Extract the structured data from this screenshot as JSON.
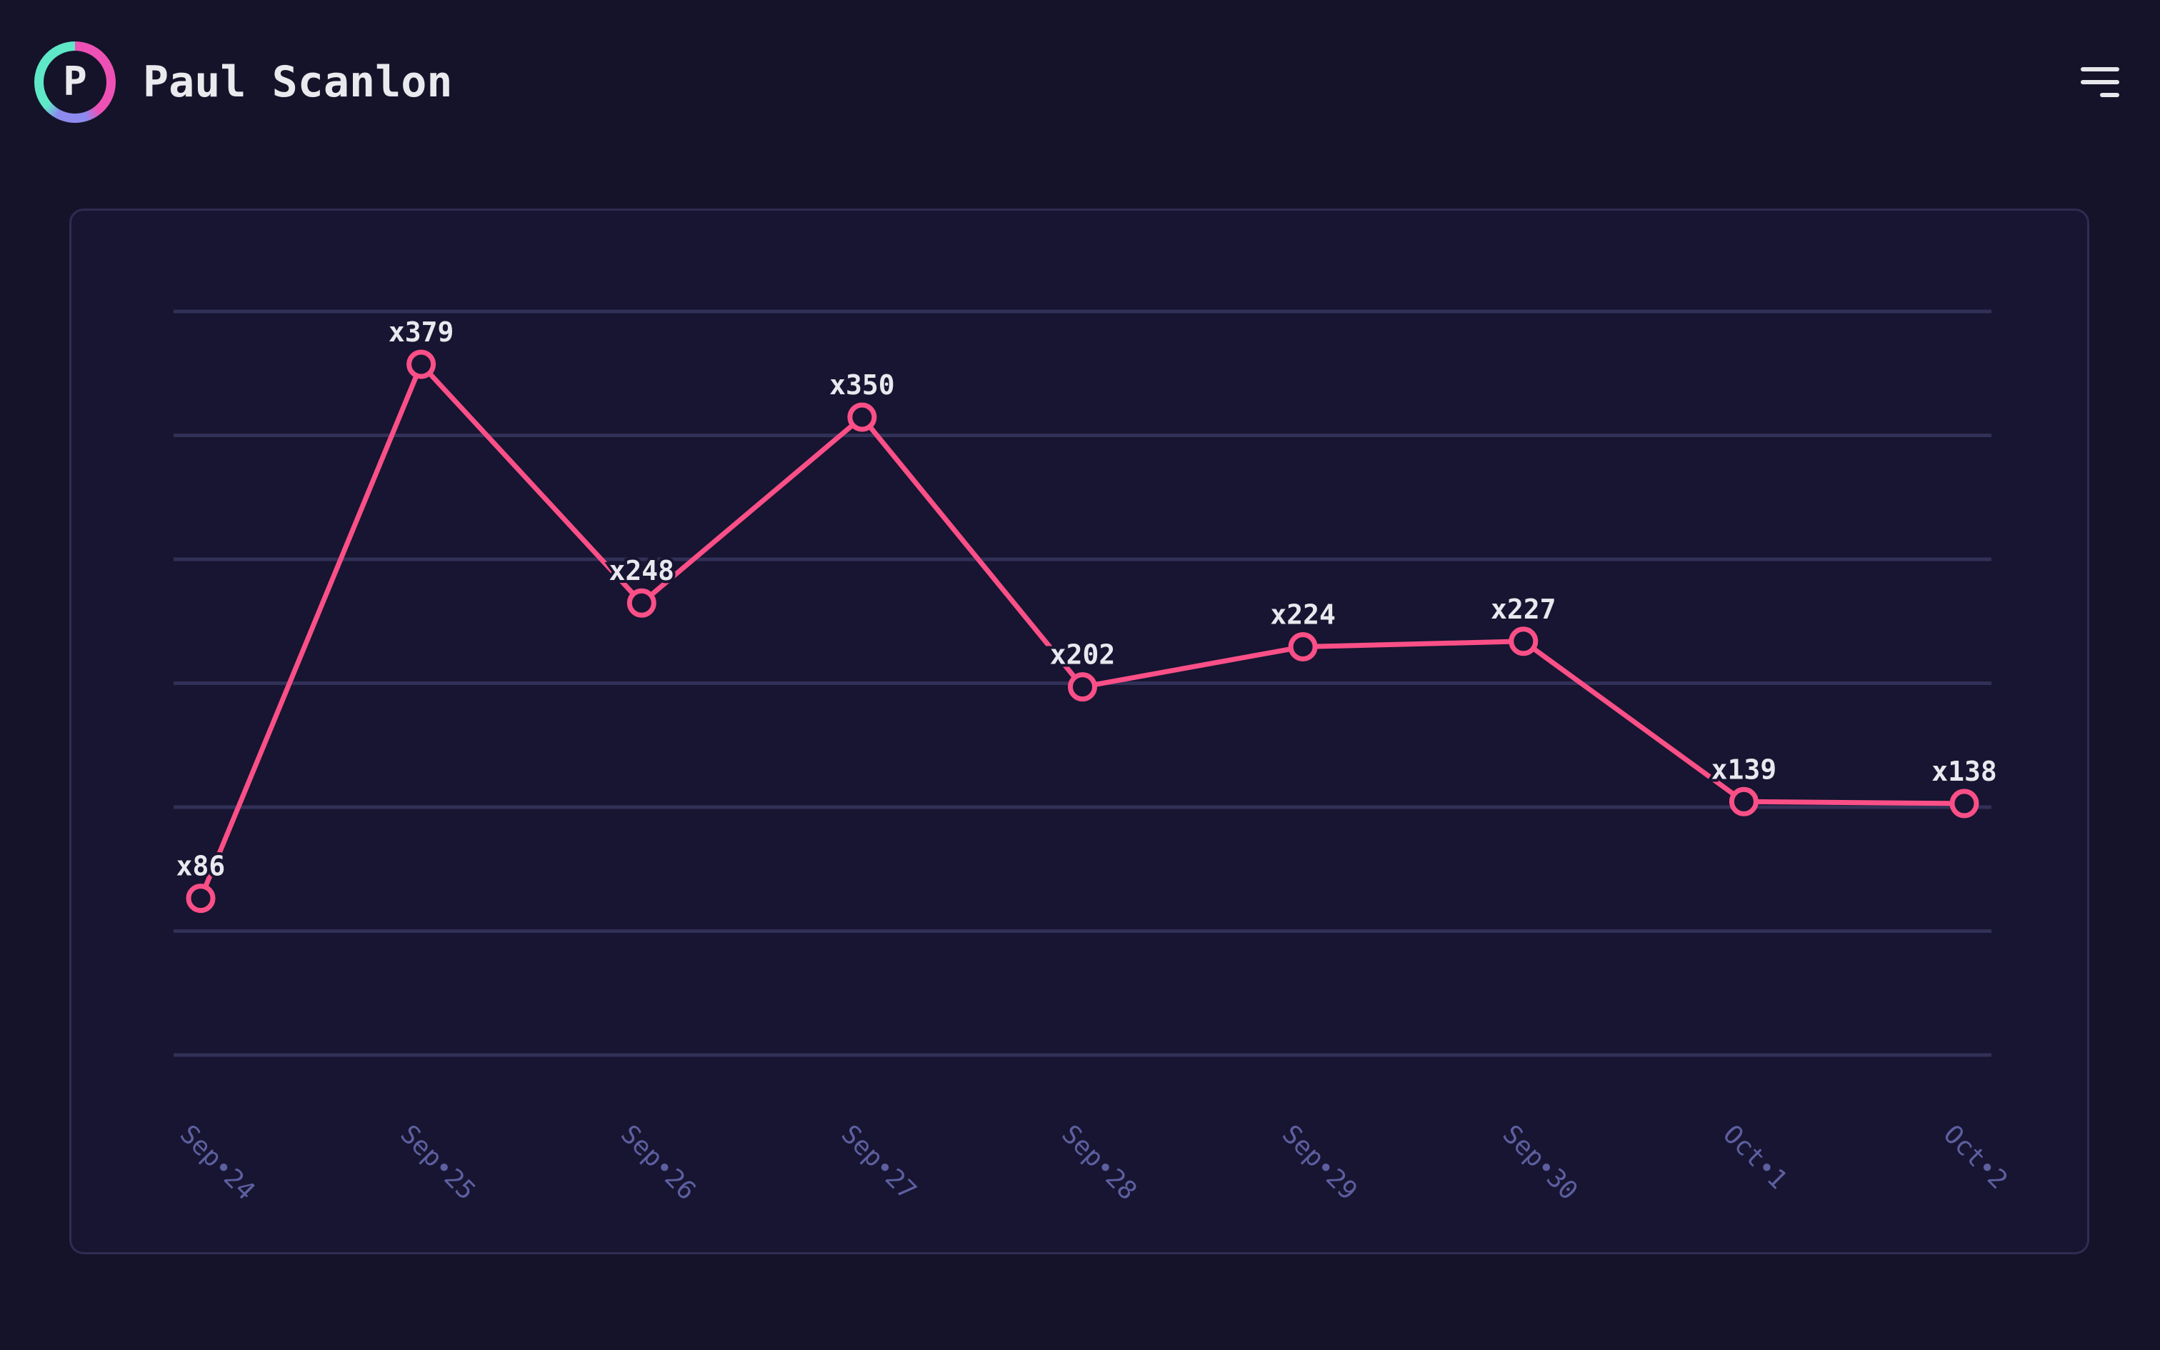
{
  "header": {
    "user_name": "Paul Scanlon",
    "avatar_initial": "P"
  },
  "theme": {
    "page_bg": "#151329",
    "card_bg": "#171531",
    "card_border": "#2e2c52",
    "grid_color": "#313057",
    "line_color": "#fa4f87",
    "data_label_color": "#e8e8ee",
    "axis_label_color": "#5d5fa0",
    "header_text_color": "#e9e9ee",
    "menu_icon_color": "#e7e7ec",
    "avatar_ring_pink": "#ee51b5",
    "avatar_ring_purple": "#8d8af0",
    "avatar_ring_teal": "#5ee8c7"
  },
  "chart_data": {
    "type": "line",
    "categories": [
      "Sep•24",
      "Sep•25",
      "Sep•26",
      "Sep•27",
      "Sep•28",
      "Sep•29",
      "Sep•30",
      "Oct•1",
      "Oct•2"
    ],
    "values": [
      86,
      379,
      248,
      350,
      202,
      224,
      227,
      139,
      138
    ],
    "point_labels": [
      "x86",
      "x379",
      "x248",
      "x350",
      "x202",
      "x224",
      "x227",
      "x139",
      "x138"
    ],
    "title": "",
    "xlabel": "",
    "ylabel": "",
    "ylim": [
      0,
      408
    ],
    "y_tick_labels": "none shown",
    "gridlines": "7 horizontal lines, no vertical lines",
    "legend": "none",
    "line_color": "#fa4f87",
    "marker": "open circle, dark fill, pink ring",
    "x_label_rotation_deg": 45
  }
}
